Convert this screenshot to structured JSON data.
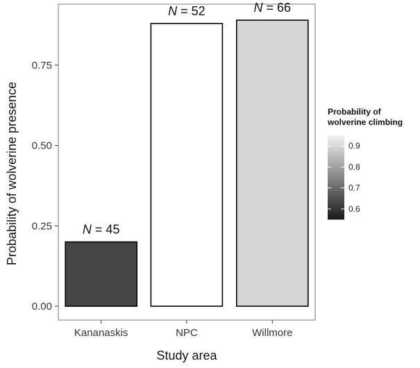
{
  "chart_data": {
    "type": "bar",
    "categories": [
      "Kananaskis",
      "NPC",
      "Willmore"
    ],
    "values": [
      0.2,
      0.88,
      0.89
    ],
    "fill_values": [
      0.55,
      0.95,
      0.85
    ],
    "bar_colors": [
      "#454545",
      "#ffffff",
      "#d6d6d6"
    ],
    "n_prefix": "N",
    "n_values": [
      "45",
      "52",
      "66"
    ],
    "xlabel": "Study area",
    "ylabel": "Probability of wolverine presence",
    "ylim": [
      0,
      0.94
    ],
    "yticks": [
      "0.00",
      "0.25",
      "0.50",
      "0.75"
    ],
    "ytick_values": [
      0,
      0.25,
      0.5,
      0.75
    ],
    "grid": false,
    "legend": {
      "title_line1": "Probability of",
      "title_line2": "wolverine climbing",
      "placement": "right",
      "ticks": [
        "0.9",
        "0.8",
        "0.7",
        "0.6"
      ],
      "tick_values": [
        0.9,
        0.8,
        0.7,
        0.6
      ],
      "range": [
        0.55,
        0.95
      ],
      "color_low": "#1a1a1a",
      "color_high": "#f2f2f2"
    }
  }
}
